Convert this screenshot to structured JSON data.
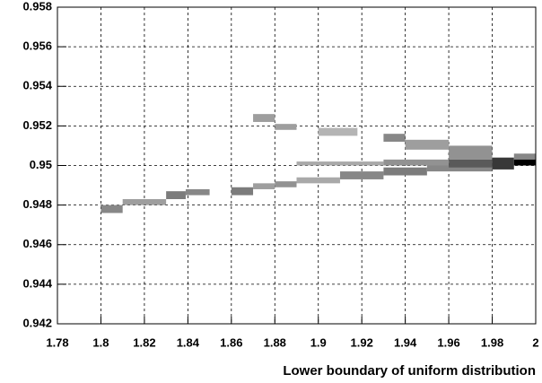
{
  "chart_data": {
    "type": "hist2d",
    "x_label": "Lower boundary of uniform distribution",
    "xlim": [
      1.78,
      2
    ],
    "ylim": [
      0.942,
      0.958
    ],
    "xticks": [
      1.78,
      1.8,
      1.82,
      1.84,
      1.86,
      1.88,
      1.9,
      1.92,
      1.94,
      1.96,
      1.98,
      2
    ],
    "yticks": [
      0.942,
      0.944,
      0.946,
      0.948,
      0.95,
      0.952,
      0.954,
      0.956,
      0.958
    ],
    "grid": true,
    "color": "#000000",
    "cells": [
      {
        "x": [
          1.8,
          1.81
        ],
        "y": [
          0.9476,
          0.948
        ],
        "value": 0.4
      },
      {
        "x": [
          1.81,
          1.83
        ],
        "y": [
          0.948,
          0.9483
        ],
        "value": 0.3
      },
      {
        "x": [
          1.83,
          1.839
        ],
        "y": [
          0.9483,
          0.9487
        ],
        "value": 0.45
      },
      {
        "x": [
          1.839,
          1.85
        ],
        "y": [
          0.9485,
          0.9488
        ],
        "value": 0.4
      },
      {
        "x": [
          1.86,
          1.87
        ],
        "y": [
          0.9485,
          0.9489
        ],
        "value": 0.45
      },
      {
        "x": [
          1.87,
          1.88
        ],
        "y": [
          0.9488,
          0.9491
        ],
        "value": 0.3
      },
      {
        "x": [
          1.88,
          1.89
        ],
        "y": [
          0.9489,
          0.9492
        ],
        "value": 0.35
      },
      {
        "x": [
          1.89,
          1.91
        ],
        "y": [
          0.9491,
          0.9494
        ],
        "value": 0.25
      },
      {
        "x": [
          1.91,
          1.93
        ],
        "y": [
          0.9493,
          0.9497
        ],
        "value": 0.4
      },
      {
        "x": [
          1.93,
          1.95
        ],
        "y": [
          0.9495,
          0.9499
        ],
        "value": 0.45
      },
      {
        "x": [
          1.95,
          1.98
        ],
        "y": [
          0.9497,
          0.95
        ],
        "value": 0.4
      },
      {
        "x": [
          1.87,
          1.88
        ],
        "y": [
          0.9522,
          0.9526
        ],
        "value": 0.3
      },
      {
        "x": [
          1.88,
          1.89
        ],
        "y": [
          0.9518,
          0.9521
        ],
        "value": 0.3
      },
      {
        "x": [
          1.9,
          1.918
        ],
        "y": [
          0.9515,
          0.9519
        ],
        "value": 0.2
      },
      {
        "x": [
          1.93,
          1.94
        ],
        "y": [
          0.9512,
          0.9516
        ],
        "value": 0.4
      },
      {
        "x": [
          1.94,
          1.96
        ],
        "y": [
          0.9508,
          0.9513
        ],
        "value": 0.3
      },
      {
        "x": [
          1.96,
          1.98
        ],
        "y": [
          0.9503,
          0.951
        ],
        "value": 0.35
      },
      {
        "x": [
          1.89,
          1.93
        ],
        "y": [
          0.95,
          0.9502
        ],
        "value": 0.25
      },
      {
        "x": [
          1.93,
          1.96
        ],
        "y": [
          0.95,
          0.9503
        ],
        "value": 0.35
      },
      {
        "x": [
          1.96,
          1.98
        ],
        "y": [
          0.9499,
          0.9503
        ],
        "value": 0.6
      },
      {
        "x": [
          1.98,
          1.99
        ],
        "y": [
          0.9498,
          0.9504
        ],
        "value": 0.75
      },
      {
        "x": [
          1.99,
          2.0
        ],
        "y": [
          0.9503,
          0.9506
        ],
        "value": 0.4
      },
      {
        "x": [
          1.99,
          2.0
        ],
        "y": [
          0.95,
          0.9503
        ],
        "value": 1.0
      }
    ]
  }
}
